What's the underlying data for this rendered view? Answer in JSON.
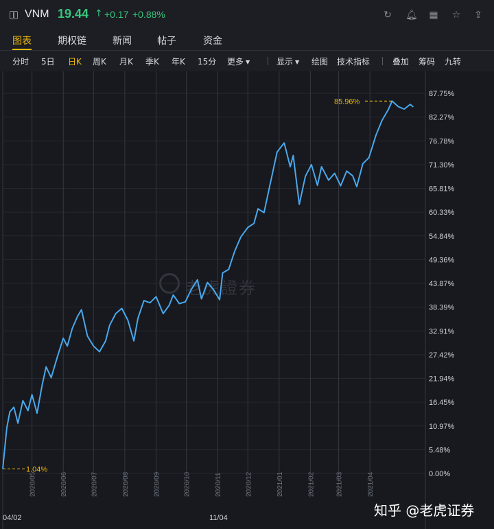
{
  "header": {
    "symbol": "VNM",
    "price": "19.44",
    "arrow": "↑",
    "change": "+0.17",
    "change_pct": "+0.88%",
    "icons": [
      "refresh-icon",
      "bell-icon",
      "grid-icon",
      "star-icon",
      "share-icon"
    ]
  },
  "tabs": [
    "图表",
    "期权链",
    "新闻",
    "帖子",
    "资金"
  ],
  "toolbar": {
    "periods": [
      "分时",
      "5日",
      "日K",
      "周K",
      "月K",
      "季K",
      "年K",
      "15分"
    ],
    "more": "更多",
    "display": "显示",
    "draw": "绘图",
    "indicators": "技术指标",
    "overlay": "叠加",
    "chips": "筹码",
    "nine": "九转"
  },
  "watermark": "老虎證券",
  "footer_watermark": "知乎 @老虎证券",
  "colors": {
    "line": "#4aa8ec",
    "up": "#37c57b",
    "accent": "#f0b90b",
    "background": "#17191e"
  },
  "chart_data": {
    "type": "line",
    "series": [
      {
        "x": [
          "2020-04-02",
          "2020-04-06",
          "2020-04-09",
          "2020-04-13",
          "2020-04-17",
          "2020-04-22",
          "2020-04-27",
          "2020-05-01",
          "2020-05-06",
          "2020-05-11",
          "2020-05-15",
          "2020-05-20",
          "2020-05-26",
          "2020-06-01",
          "2020-06-05",
          "2020-06-10",
          "2020-06-15",
          "2020-06-19",
          "2020-06-25",
          "2020-07-01",
          "2020-07-07",
          "2020-07-13",
          "2020-07-17",
          "2020-07-23",
          "2020-07-29",
          "2020-08-04",
          "2020-08-10",
          "2020-08-14",
          "2020-08-20",
          "2020-08-26",
          "2020-09-01",
          "2020-09-08",
          "2020-09-14",
          "2020-09-18",
          "2020-09-24",
          "2020-09-30",
          "2020-10-06",
          "2020-10-12",
          "2020-10-16",
          "2020-10-22",
          "2020-10-28",
          "2020-11-03",
          "2020-11-06",
          "2020-11-12",
          "2020-11-18",
          "2020-11-24",
          "2020-12-01",
          "2020-12-07",
          "2020-12-11",
          "2020-12-17",
          "2020-12-23",
          "2020-12-30",
          "2021-01-06",
          "2021-01-12",
          "2021-01-15",
          "2021-01-21",
          "2021-01-27",
          "2021-02-02",
          "2021-02-08",
          "2021-02-12",
          "2021-02-19",
          "2021-02-25",
          "2021-03-03",
          "2021-03-09",
          "2021-03-15",
          "2021-03-19",
          "2021-03-25",
          "2021-03-31",
          "2021-04-07",
          "2021-04-13",
          "2021-04-19",
          "2021-04-23",
          "2021-04-29",
          "2021-05-05",
          "2021-05-11",
          "2021-05-14"
        ],
        "values": [
          1.04,
          10.5,
          14.2,
          15.3,
          11.6,
          16.8,
          14.5,
          18.2,
          13.9,
          20.3,
          24.6,
          22.1,
          26.8,
          31.2,
          29.4,
          33.5,
          36.2,
          37.8,
          31.7,
          29.4,
          28.1,
          30.6,
          34.2,
          36.9,
          38.1,
          35.4,
          30.6,
          35.8,
          39.9,
          39.4,
          40.8,
          36.9,
          38.8,
          41.2,
          39.2,
          39.6,
          42.5,
          44.7,
          40.3,
          44.1,
          42.4,
          40.1,
          46.3,
          47.1,
          51.3,
          54.6,
          56.8,
          57.7,
          61.1,
          60.2,
          66.7,
          74.2,
          76.3,
          70.8,
          73.4,
          62.1,
          68.6,
          71.3,
          66.5,
          70.8,
          67.7,
          69.3,
          66.4,
          69.8,
          68.7,
          66.2,
          71.5,
          72.9,
          78.1,
          81.5,
          83.9,
          85.96,
          84.7,
          84.1,
          85.2,
          84.6
        ],
        "color": "#4aa8ec"
      }
    ],
    "ylim": [
      0,
      87.75
    ],
    "y_ticks": [
      "87.75%",
      "82.27%",
      "76.78%",
      "71.30%",
      "65.81%",
      "60.33%",
      "54.84%",
      "49.36%",
      "43.87%",
      "38.39%",
      "32.91%",
      "27.42%",
      "21.94%",
      "16.45%",
      "10.97%",
      "5.48%",
      "0.00%"
    ],
    "x_ticks": [
      "2020/05",
      "2020/06",
      "2020/07",
      "2020/08",
      "2020/09",
      "2020/10",
      "2020/11",
      "2020/12",
      "2021/01",
      "2021/02",
      "2021/03",
      "2021/04"
    ],
    "x_bottom_labels": [
      "04/02",
      "11/04"
    ],
    "annotations": {
      "start": "1.04%",
      "max": "85.96%"
    },
    "grid": true
  }
}
